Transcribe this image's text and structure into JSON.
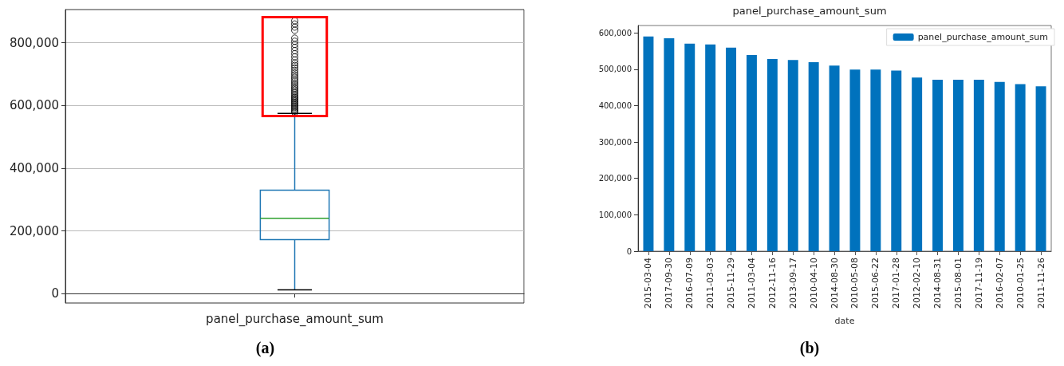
{
  "chart_data": [
    {
      "type": "box",
      "categories": [
        "panel_purchase_amount_sum"
      ],
      "color": "#1f77b4",
      "boxes": [
        {
          "low": 12000,
          "q1": 172000,
          "median": 240000,
          "q3": 330000,
          "high": 575000,
          "outliers": [
            578000,
            582000,
            586000,
            590000,
            594000,
            598000,
            602000,
            606000,
            610000,
            614000,
            618000,
            622000,
            626000,
            630000,
            635000,
            640000,
            645000,
            650000,
            655000,
            660000,
            666000,
            672000,
            678000,
            684000,
            690000,
            697000,
            704000,
            712000,
            720000,
            728000,
            736000,
            745000,
            755000,
            765000,
            775000,
            785000,
            795000,
            805000,
            815000,
            840000,
            850000,
            860000,
            870000
          ]
        }
      ],
      "ylim": [
        -30000,
        906000
      ],
      "yticks": [
        0,
        {
          "value": 200000,
          "label": "200,000"
        },
        {
          "value": 400000,
          "label": "400,000"
        },
        {
          "value": 600000,
          "label": "600,000"
        },
        {
          "value": 800000,
          "label": "800,000"
        }
      ],
      "grid": true,
      "legend": false,
      "marker": "circle",
      "annotations": [
        "(a)"
      ]
    },
    {
      "type": "bar",
      "title": "panel_purchase_amount_sum",
      "xlabel": "date",
      "categories": [
        "2015-03-04",
        "2017-09-30",
        "2016-07-09",
        "2011-03-03",
        "2015-11-29",
        "2011-03-04",
        "2012-11-16",
        "2013-09-17",
        "2010-04-10",
        "2014-08-30",
        "2010-05-08",
        "2015-06-22",
        "2017-01-28",
        "2012-02-10",
        "2014-08-31",
        "2015-08-01",
        "2017-11-19",
        "2016-02-07",
        "2010-01-25",
        "2011-11-26"
      ],
      "series": [
        {
          "name": "panel_purchase_amount_sum",
          "color": "#0072bd",
          "values": [
            590000,
            585000,
            570000,
            568000,
            559000,
            539000,
            528000,
            525000,
            519000,
            510000,
            499000,
            499000,
            496000,
            477000,
            471000,
            471000,
            471000,
            465000,
            459000,
            453000
          ]
        }
      ],
      "ylim": [
        0,
        620000
      ],
      "yticks": [
        0,
        {
          "value": 100000,
          "label": "100,000"
        },
        {
          "value": 200000,
          "label": "200,000"
        },
        {
          "value": 300000,
          "label": "300,000"
        },
        {
          "value": 400000,
          "label": "400,000"
        },
        {
          "value": 500000,
          "label": "500,000"
        },
        {
          "value": 600000,
          "label": "600,000"
        }
      ],
      "grid": false,
      "legend": "top right",
      "annotations": [
        "(b)"
      ]
    }
  ]
}
